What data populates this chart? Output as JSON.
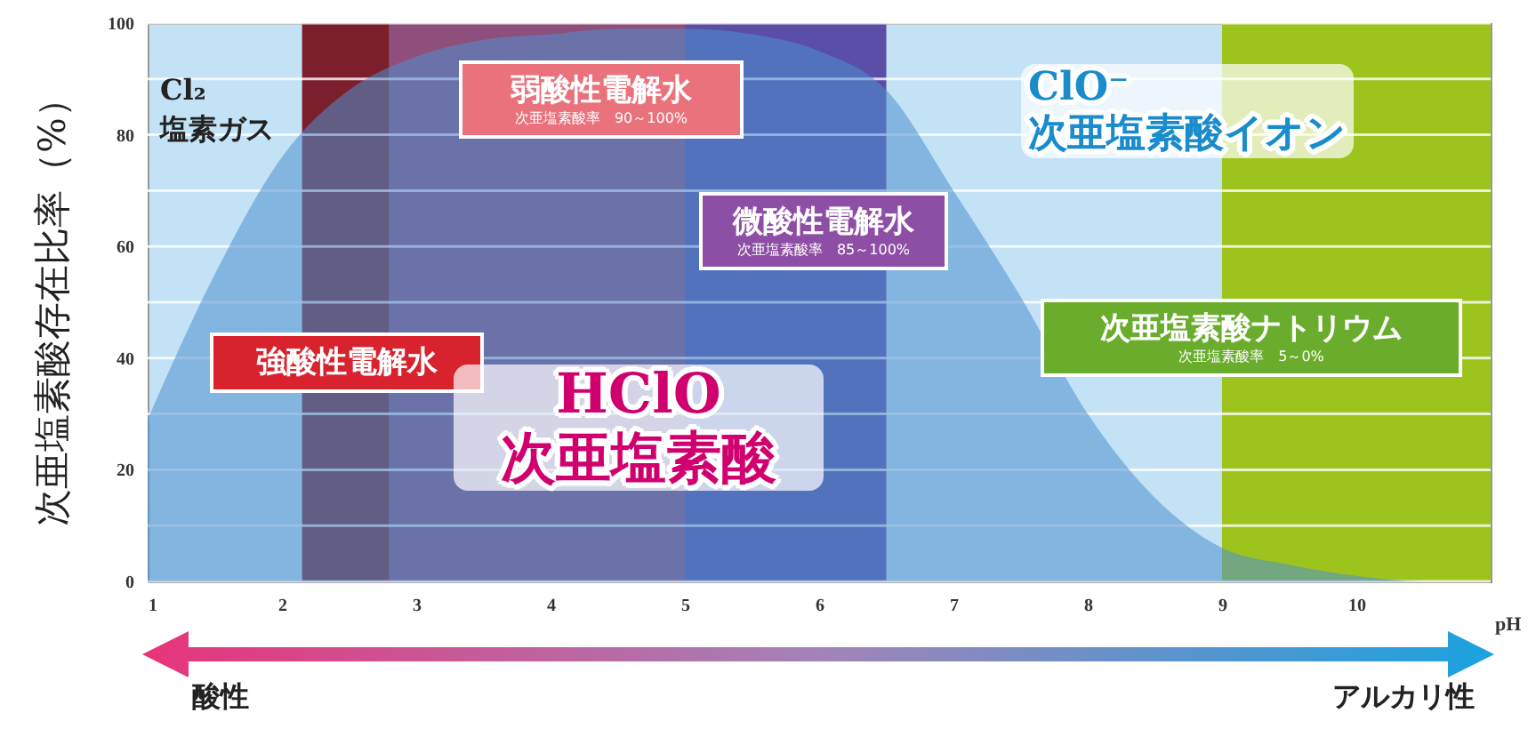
{
  "chart_data": {
    "type": "area",
    "ylabel": "次亜塩素酸存在比率（%）",
    "xlabel": "pH",
    "xlim": [
      1,
      11
    ],
    "xticks": [
      1,
      2,
      3,
      4,
      5,
      6,
      7,
      8,
      9,
      10
    ],
    "ylim": [
      0,
      100
    ],
    "yticks": [
      0,
      {
        "value": 10,
        "label": null
      },
      20,
      {
        "value": 30,
        "label": null
      },
      40,
      {
        "value": 50,
        "label": null
      },
      60,
      {
        "value": 70,
        "label": null
      },
      80,
      {
        "value": 90,
        "label": null
      },
      100
    ],
    "grid": "y",
    "series": [
      {
        "name": "HClO 次亜塩素酸",
        "color": "#4f8fd0",
        "x": [
          1,
          1.5,
          2,
          2.5,
          3,
          3.5,
          4,
          4.5,
          5,
          5.5,
          6,
          6.5,
          7,
          7.5,
          8,
          8.5,
          9,
          9.5,
          10,
          10.5,
          11
        ],
        "values": [
          29,
          55,
          76,
          88,
          94,
          97,
          98,
          99,
          99,
          98,
          95,
          88,
          70,
          51,
          30,
          15,
          6,
          3,
          1,
          0,
          0
        ]
      }
    ],
    "bands": [
      {
        "axis": "x",
        "from": 2.15,
        "to": 2.8,
        "label": "強酸性電解水",
        "color": "#7b1f2c"
      },
      {
        "axis": "x",
        "from": 2.8,
        "to": 5,
        "label": "弱酸性電解水",
        "color": "#8f4f7c"
      },
      {
        "axis": "x",
        "from": 5,
        "to": 6.5,
        "label": "微酸性電解水",
        "color": "#5a4ea6"
      },
      {
        "axis": "x",
        "from": 9,
        "to": 11,
        "label": "次亜塩素酸ナトリウム",
        "color": "#9dc41d"
      }
    ],
    "annotations": [
      "Cl₂\n塩素ガス",
      "ClO⁻\n次亜塩素酸イオン",
      "次亜塩素酸率　90～100%",
      "次亜塩素酸率　85～100%",
      "次亜塩素酸率　5～0%",
      "酸性",
      "アルカリ性"
    ]
  }
}
